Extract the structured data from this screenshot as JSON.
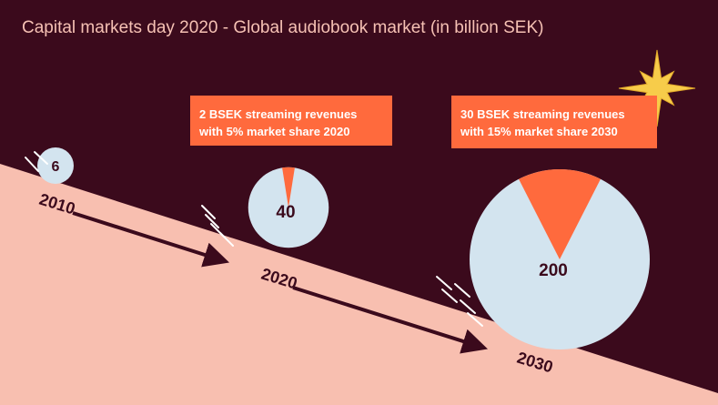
{
  "title": "Capital markets day 2020 - Global audiobook market (in billion SEK)",
  "callouts": {
    "y2020": {
      "line1": "2 BSEK streaming revenues",
      "line2": "with 5% market share 2020"
    },
    "y2030": {
      "line1": "30 BSEK streaming revenues",
      "line2": "with 15% market share 2030"
    }
  },
  "colors": {
    "background": "#3b0a1c",
    "title": "#f6c1b4",
    "slope": "#f8bfb0",
    "circle": "#d3e4ef",
    "share": "#ff6a3d",
    "arrow": "#3b0a1c",
    "star": "#f7cc4a"
  },
  "decoration": {
    "star_icon": "star-icon",
    "arrow_icon": "arrow-icon"
  },
  "chart_data": {
    "type": "pie",
    "title": "Capital markets day 2020 - Global audiobook market (in billion SEK)",
    "unit": "billion SEK",
    "points": [
      {
        "year": "2010",
        "market": 6,
        "market_label": "6",
        "streaming_share_pct": null
      },
      {
        "year": "2020",
        "market": 40,
        "market_label": "40",
        "streaming_share_pct": 5,
        "streaming_revenue": 2
      },
      {
        "year": "2030",
        "market": 200,
        "market_label": "200",
        "streaming_share_pct": 15,
        "streaming_revenue": 30
      }
    ]
  }
}
